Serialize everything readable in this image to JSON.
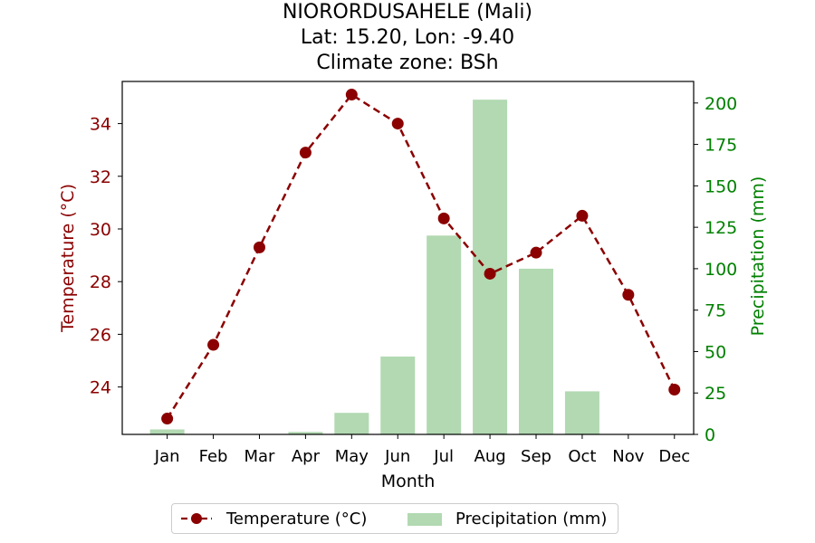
{
  "chart_data": {
    "type": "bar",
    "title": [
      "NIORORDUSAHELE (Mali)",
      "Lat: 15.20, Lon: -9.40",
      "Climate zone: BSh"
    ],
    "xlabel": "Month",
    "ylabel_left": "Temperature (°C)",
    "ylabel_right": "Precipitation (mm)",
    "categories": [
      "Jan",
      "Feb",
      "Mar",
      "Apr",
      "May",
      "Jun",
      "Jul",
      "Aug",
      "Sep",
      "Oct",
      "Nov",
      "Dec"
    ],
    "series": [
      {
        "name": "Temperature (°C)",
        "type": "line",
        "axis": "left",
        "color": "#8b0000",
        "values": [
          22.8,
          25.6,
          29.3,
          32.9,
          35.1,
          34.0,
          30.4,
          28.3,
          29.1,
          30.5,
          27.5,
          23.9
        ]
      },
      {
        "name": "Precipitation (mm)",
        "type": "bar",
        "axis": "right",
        "color": "#b2d9b2",
        "values": [
          3,
          0,
          0,
          1.5,
          13,
          47,
          120,
          202,
          100,
          26,
          0,
          0
        ]
      }
    ],
    "ylim_left": [
      22.2,
      35.6
    ],
    "ylim_right": [
      0,
      213
    ],
    "yticks_left": [
      24,
      26,
      28,
      30,
      32,
      34
    ],
    "yticks_right": [
      0,
      25,
      50,
      75,
      100,
      125,
      150,
      175,
      200
    ],
    "left_axis_color": "#8b0000",
    "right_axis_color": "#008000",
    "grid": false,
    "legend_placement": "bottom-center"
  }
}
